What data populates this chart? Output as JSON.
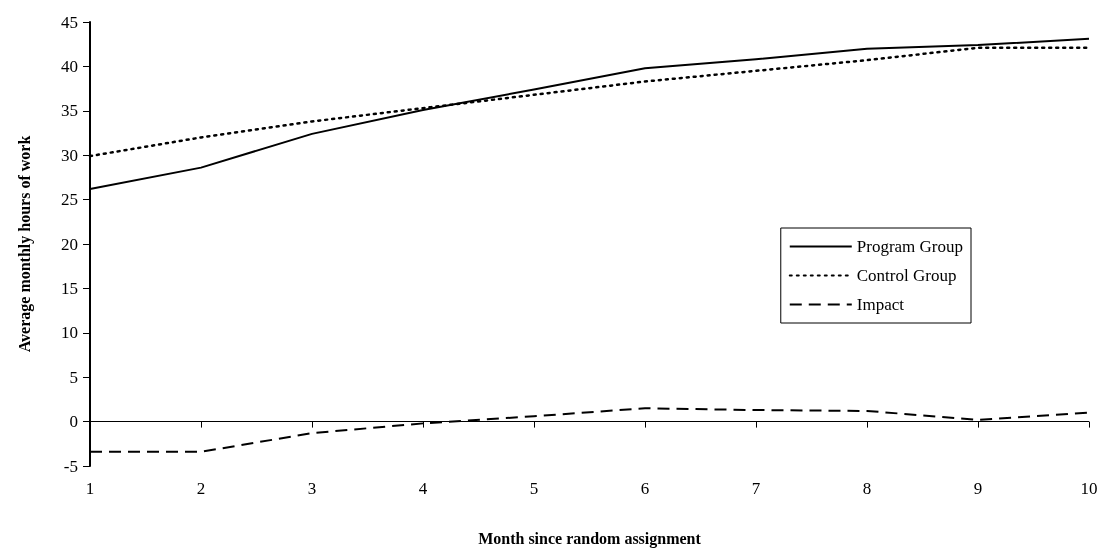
{
  "chart_data": {
    "type": "line",
    "xlabel": "Month since random assignment",
    "ylabel": "Average monthly hours of work",
    "categories": [
      "1",
      "2",
      "3",
      "4",
      "5",
      "6",
      "7",
      "8",
      "9",
      "10"
    ],
    "series": [
      {
        "name": "Program Group",
        "color": "#000000",
        "line_style": "solid",
        "values": [
          26.2,
          28.6,
          32.4,
          35.1,
          37.4,
          39.8,
          40.8,
          42.0,
          42.4,
          43.1
        ]
      },
      {
        "name": "Control Group",
        "color": "#000000",
        "line_style": "dotted",
        "values": [
          29.9,
          32.0,
          33.8,
          35.3,
          36.8,
          38.3,
          39.5,
          40.7,
          42.1,
          42.1
        ]
      },
      {
        "name": "Impact",
        "color": "#000000",
        "line_style": "dashed",
        "values": [
          -3.4,
          -3.4,
          -1.3,
          -0.2,
          0.6,
          1.5,
          1.3,
          1.2,
          0.2,
          1.0
        ]
      }
    ],
    "ylim": [
      -5,
      45
    ],
    "yticks": [
      -5,
      0,
      5,
      10,
      15,
      20,
      25,
      30,
      35,
      40,
      45
    ],
    "ref_lines": [
      {
        "axis": "y",
        "value": 0,
        "label": null,
        "color": "#000000",
        "line_style": "solid"
      }
    ],
    "grid": false,
    "legend": "right",
    "marker": "none"
  }
}
